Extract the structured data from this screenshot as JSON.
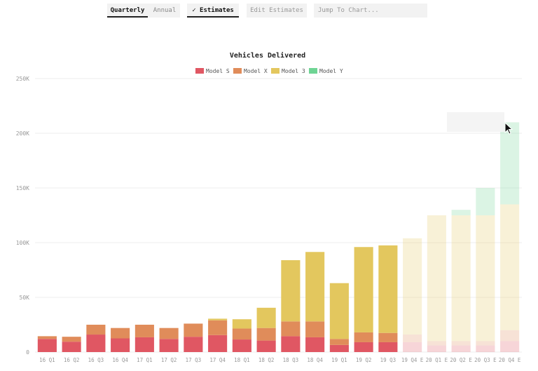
{
  "toolbar": {
    "tabs": [
      {
        "label": "Quarterly",
        "active": true
      },
      {
        "label": "Annual",
        "active": false
      }
    ],
    "estimates_icon": "check-icon",
    "estimates_label": "Estimates",
    "edit_estimates_label": "Edit Estimates",
    "jump_placeholder": "Jump To Chart..."
  },
  "chart_data": {
    "type": "bar",
    "stacked": true,
    "title": "Vehicles Delivered",
    "legend_position": "top",
    "grid": true,
    "ylim": [
      0,
      250000
    ],
    "yticks": [
      "0",
      "50K",
      "100K",
      "150K",
      "200K",
      "250K"
    ],
    "ytick_values": [
      0,
      50000,
      100000,
      150000,
      200000,
      250000
    ],
    "categories": [
      "16 Q1",
      "16 Q2",
      "16 Q3",
      "16 Q4",
      "17 Q1",
      "17 Q2",
      "17 Q3",
      "17 Q4",
      "18 Q1",
      "18 Q2",
      "18 Q3",
      "18 Q4",
      "19 Q1",
      "19 Q2",
      "19 Q3",
      "19 Q4 E",
      "20 Q1 E",
      "20 Q2 E",
      "20 Q3 E",
      "20 Q4 E"
    ],
    "estimate_from_index": 15,
    "series": [
      {
        "name": "Model S",
        "color": "#e05763",
        "values": [
          12000,
          9500,
          16000,
          12500,
          13500,
          12000,
          14000,
          15500,
          11500,
          10500,
          14500,
          13500,
          6500,
          9000,
          9000,
          9000,
          6000,
          6000,
          6000,
          10000
        ]
      },
      {
        "name": "Model X",
        "color": "#e08c5a",
        "values": [
          2500,
          4500,
          9000,
          9500,
          11500,
          10000,
          12000,
          13500,
          10000,
          11500,
          13500,
          14500,
          5500,
          9000,
          8500,
          7000,
          4000,
          4000,
          4000,
          10000
        ]
      },
      {
        "name": "Model 3",
        "color": "#e3c75e",
        "values": [
          0,
          0,
          0,
          0,
          0,
          0,
          0,
          1500,
          8500,
          18500,
          56000,
          63500,
          51000,
          78000,
          80000,
          88000,
          115000,
          115000,
          115000,
          115000
        ]
      },
      {
        "name": "Model Y",
        "color": "#6ed494",
        "values": [
          0,
          0,
          0,
          0,
          0,
          0,
          0,
          0,
          0,
          0,
          0,
          0,
          0,
          0,
          0,
          0,
          0,
          5000,
          25000,
          75000
        ]
      }
    ]
  }
}
